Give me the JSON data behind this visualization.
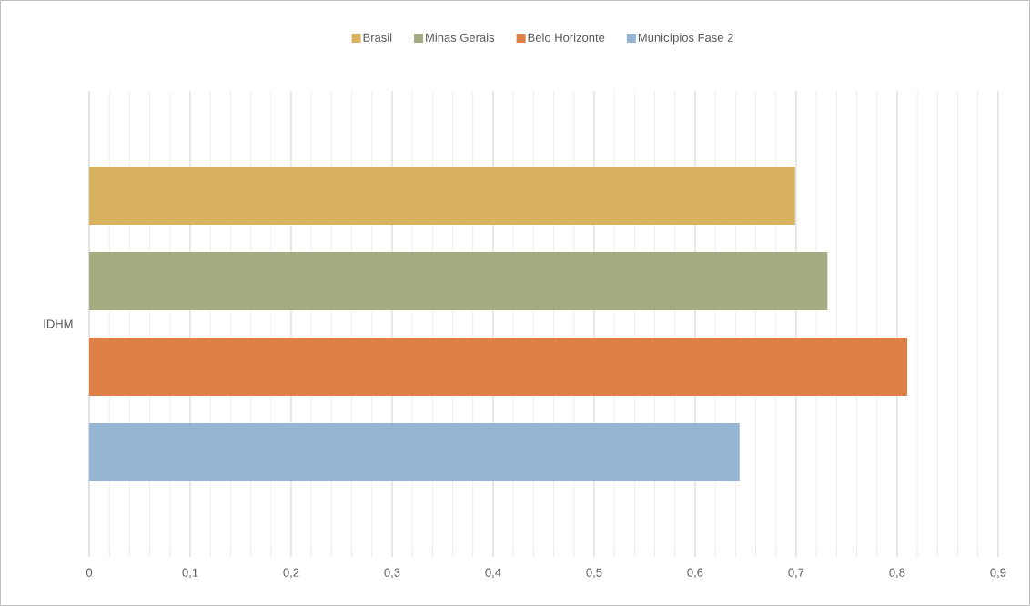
{
  "chart_data": {
    "type": "bar",
    "orientation": "horizontal",
    "categories": [
      "IDHM"
    ],
    "series": [
      {
        "name": "Brasil",
        "color": "#d8b25f",
        "values": [
          0.699
        ]
      },
      {
        "name": "Minas Gerais",
        "color": "#a5ab80",
        "values": [
          0.731
        ]
      },
      {
        "name": "Belo Horizonte",
        "color": "#de8048",
        "values": [
          0.81
        ]
      },
      {
        "name": "Municípios Fase 2",
        "color": "#94b5d3",
        "values": [
          0.644
        ]
      }
    ],
    "xlim": [
      0,
      0.9
    ],
    "xticks": [
      0,
      {
        "value": 0.1,
        "label": "0,1"
      },
      {
        "value": 0.2,
        "label": "0,2"
      },
      {
        "value": 0.3,
        "label": "0,3"
      },
      {
        "value": 0.4,
        "label": "0,4"
      },
      {
        "value": 0.5,
        "label": "0,5"
      },
      {
        "value": 0.6,
        "label": "0,6"
      },
      {
        "value": 0.7,
        "label": "0,7"
      },
      {
        "value": 0.8,
        "label": "0,8"
      },
      {
        "value": 0.9,
        "label": "0,9"
      }
    ],
    "grid": "x",
    "legend": "top"
  }
}
